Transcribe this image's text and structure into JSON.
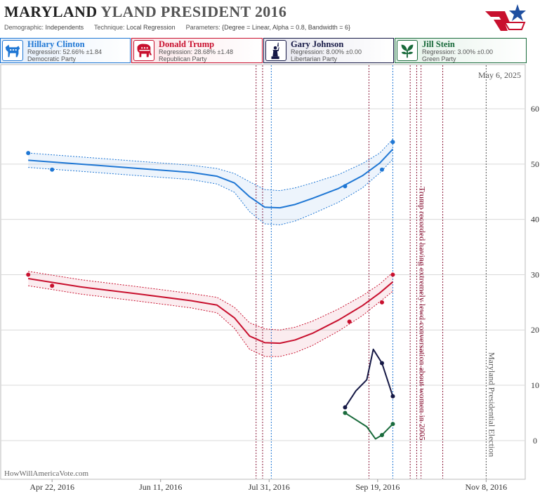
{
  "header": {
    "title_bold": "MARYLAND",
    "title_rest": "YLAND PRESIDENT 2016",
    "demographic_label": "Demographic:",
    "demographic_value": "Independents",
    "technique_label": "Technique:",
    "technique_value": "Local Regression",
    "parameters_label": "Parameters:",
    "parameters_value": "{Degree = Linear, Alpha = 0.8, Bandwidth = 6}"
  },
  "candidates": [
    {
      "name": "Hillary Clinton",
      "regression": "Regression: 52.66% ±1.84",
      "party": "Democratic Party",
      "color": "#1f77d4",
      "icon": "donkey-icon"
    },
    {
      "name": "Donald Trump",
      "regression": "Regression: 28.68% ±1.48",
      "party": "Republican Party",
      "color": "#c8102e",
      "icon": "elephant-icon"
    },
    {
      "name": "Gary Johnson",
      "regression": "Regression: 8.00% ±0.00",
      "party": "Libertarian Party",
      "color": "#151845",
      "icon": "liberty-statue-icon"
    },
    {
      "name": "Jill Stein",
      "regression": "Regression: 3.00% ±0.00",
      "party": "Green Party",
      "color": "#1a6b3c",
      "icon": "leaf-icon"
    }
  ],
  "footer": {
    "watermark": "HowWillAmericaVote.com"
  },
  "chart_data": {
    "type": "line",
    "date_label": "May 6, 2025",
    "x_ticks": [
      "Apr 22, 2016",
      "Jun 11, 2016",
      "Jul 31, 2016",
      "Sep 19, 2016",
      "Nov 8, 2016"
    ],
    "y_ticks": [
      0,
      10,
      20,
      30,
      40,
      50,
      60
    ],
    "ylim": [
      -7,
      68
    ],
    "xlim": [
      "2016-03-29",
      "2016-11-26"
    ],
    "grid": true,
    "annotations": [
      {
        "date": "2016-10-07",
        "text": "Trump recorded having extremely lewd conversation about women in 2005",
        "color": "#8b1a3a"
      },
      {
        "date": "2016-11-08",
        "text": "Maryland Presidential Election",
        "color": "#555555"
      }
    ],
    "event_lines": [
      {
        "date": "2016-07-25",
        "color": "#8b1a3a"
      },
      {
        "date": "2016-07-28",
        "color": "#8b1a3a"
      },
      {
        "date": "2016-08-01",
        "color": "#1f77d4"
      },
      {
        "date": "2016-09-15",
        "color": "#8b1a3a"
      },
      {
        "date": "2016-09-26",
        "color": "#1f77d4"
      },
      {
        "date": "2016-10-04",
        "color": "#8b1a3a"
      },
      {
        "date": "2016-10-09",
        "color": "#8b1a3a"
      },
      {
        "date": "2016-10-19",
        "color": "#8b1a3a"
      }
    ],
    "series": [
      {
        "name": "Hillary Clinton",
        "color": "#1f77d4",
        "points": [
          [
            "2016-04-11",
            52
          ],
          [
            "2016-04-22",
            49
          ],
          [
            "2016-09-04",
            46
          ],
          [
            "2016-09-21",
            49
          ],
          [
            "2016-09-26",
            54
          ]
        ],
        "fit_x": [
          "2016-04-11",
          "2016-05-05",
          "2016-06-01",
          "2016-06-25",
          "2016-07-07",
          "2016-07-15",
          "2016-07-22",
          "2016-07-29",
          "2016-08-05",
          "2016-08-12",
          "2016-08-20",
          "2016-09-01",
          "2016-09-12",
          "2016-09-20",
          "2016-09-26"
        ],
        "fit": [
          50.7,
          50.0,
          49.2,
          48.5,
          47.8,
          46.6,
          44.1,
          42.2,
          42.1,
          42.7,
          43.8,
          45.6,
          47.9,
          50.2,
          52.7
        ],
        "upper": [
          52.0,
          51.3,
          50.5,
          49.8,
          49.2,
          48.3,
          46.8,
          45.4,
          45.2,
          45.7,
          46.6,
          48.1,
          50.1,
          52.0,
          54.5
        ],
        "lower": [
          49.4,
          48.7,
          47.9,
          47.2,
          46.4,
          44.9,
          41.4,
          39.2,
          39.0,
          39.7,
          41.0,
          43.1,
          45.7,
          48.4,
          50.9
        ]
      },
      {
        "name": "Donald Trump",
        "color": "#c8102e",
        "points": [
          [
            "2016-04-11",
            30
          ],
          [
            "2016-04-22",
            28
          ],
          [
            "2016-09-06",
            21.5
          ],
          [
            "2016-09-21",
            25
          ],
          [
            "2016-09-26",
            30
          ]
        ],
        "fit_x": [
          "2016-04-11",
          "2016-05-05",
          "2016-06-01",
          "2016-06-25",
          "2016-07-07",
          "2016-07-15",
          "2016-07-22",
          "2016-07-29",
          "2016-08-05",
          "2016-08-12",
          "2016-08-20",
          "2016-09-01",
          "2016-09-12",
          "2016-09-20",
          "2016-09-26"
        ],
        "fit": [
          29.3,
          27.8,
          26.5,
          25.3,
          24.5,
          22.2,
          18.9,
          17.7,
          17.6,
          18.2,
          19.4,
          21.8,
          24.4,
          26.7,
          28.7
        ],
        "upper": [
          30.6,
          29.1,
          27.8,
          26.6,
          25.9,
          24.1,
          21.3,
          20.2,
          20.0,
          20.5,
          21.6,
          23.8,
          26.2,
          28.3,
          30.4
        ],
        "lower": [
          28.0,
          26.5,
          25.2,
          24.0,
          23.1,
          20.3,
          16.5,
          15.2,
          15.2,
          15.9,
          17.2,
          19.8,
          22.6,
          25.1,
          27.0
        ]
      },
      {
        "name": "Gary Johnson",
        "color": "#151845",
        "points": [
          [
            "2016-09-04",
            6
          ],
          [
            "2016-09-21",
            14
          ],
          [
            "2016-09-26",
            8
          ]
        ],
        "line_x": [
          "2016-09-04",
          "2016-09-09",
          "2016-09-14",
          "2016-09-17",
          "2016-09-21",
          "2016-09-26"
        ],
        "line": [
          6,
          9,
          11,
          16.5,
          14,
          8
        ]
      },
      {
        "name": "Jill Stein",
        "color": "#1a6b3c",
        "points": [
          [
            "2016-09-04",
            5
          ],
          [
            "2016-09-21",
            1
          ],
          [
            "2016-09-26",
            3
          ]
        ],
        "line_x": [
          "2016-09-04",
          "2016-09-14",
          "2016-09-18",
          "2016-09-21",
          "2016-09-26"
        ],
        "line": [
          5,
          2.5,
          0.3,
          1,
          3
        ]
      }
    ]
  }
}
